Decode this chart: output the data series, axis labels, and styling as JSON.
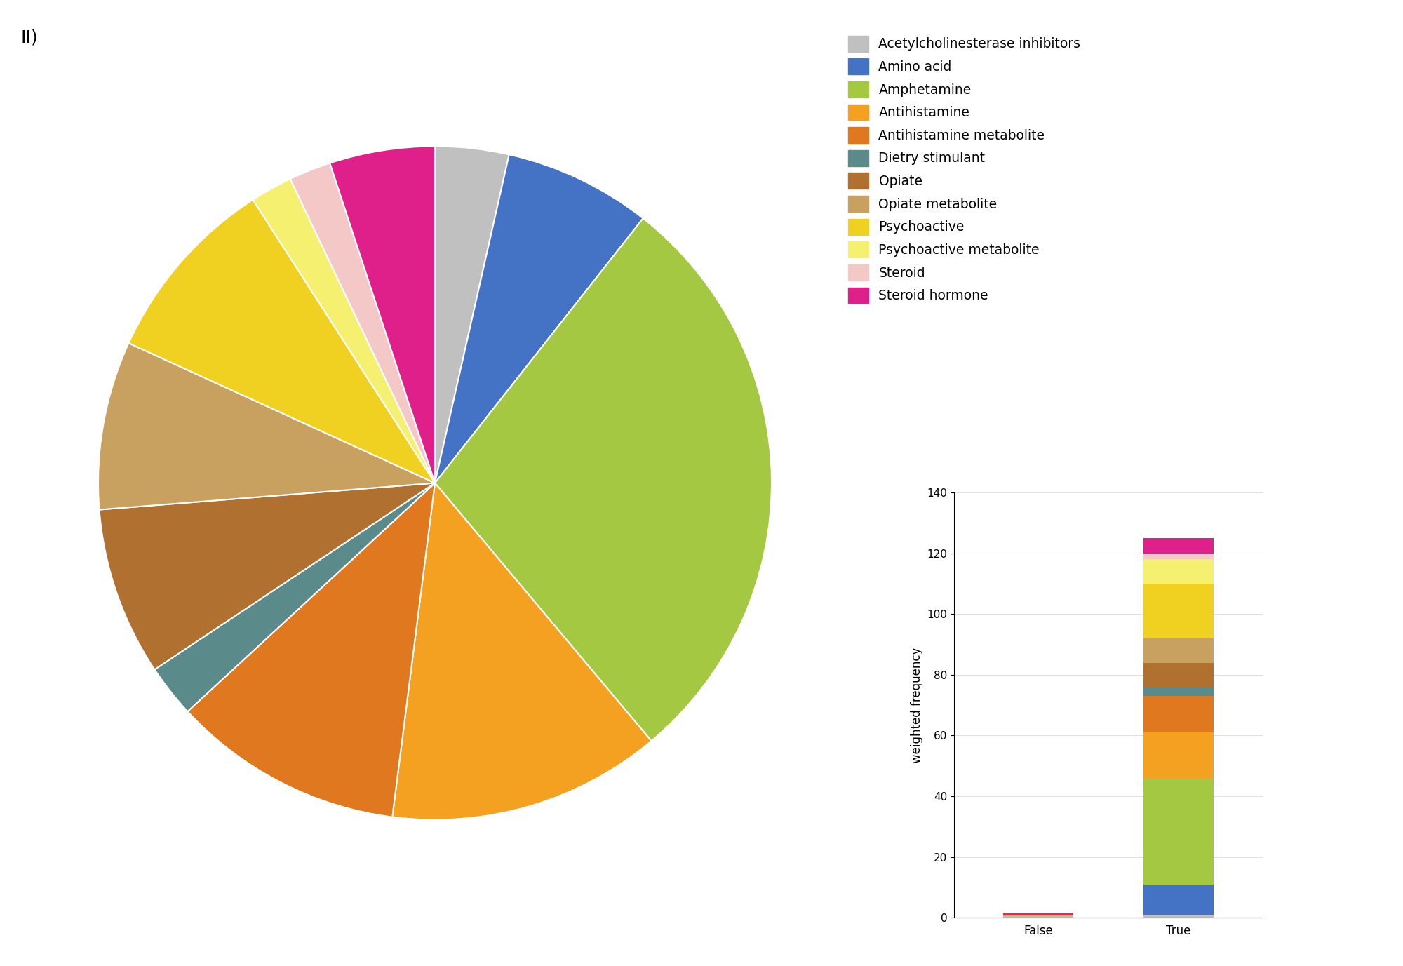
{
  "labels": [
    "Acetylcholinesterase inhibitors",
    "Amino acid",
    "Amphetamine",
    "Antihistamine",
    "Antihistamine metabolite",
    "Dietry stimulant",
    "Opiate",
    "Opiate metabolite",
    "Psychoactive",
    "Psychoactive metabolite",
    "Steroid",
    "Steroid hormone"
  ],
  "colors": [
    "#c0c0c0",
    "#4472c4",
    "#a5c842",
    "#f4a020",
    "#e07820",
    "#5b8a8a",
    "#b07030",
    "#c8a060",
    "#f0d020",
    "#f5f070",
    "#f5c8c8",
    "#e0208a"
  ],
  "pie_sizes": [
    3.5,
    7,
    28,
    13,
    11,
    2.5,
    8,
    8,
    9,
    2,
    2,
    5
  ],
  "bar_false": [
    0.5,
    0.0,
    0.0,
    0.5,
    0.0,
    0.0,
    0.0,
    0.0,
    0.0,
    0.0,
    0.0,
    0.5
  ],
  "bar_true": [
    1,
    10,
    35,
    15,
    12,
    3,
    8,
    8,
    18,
    8,
    2,
    5
  ],
  "ylabel": "weighted frequency",
  "x_labels": [
    "False",
    "True"
  ],
  "ylim": [
    0,
    140
  ],
  "yticks": [
    0,
    20,
    40,
    60,
    80,
    100,
    120,
    140
  ]
}
